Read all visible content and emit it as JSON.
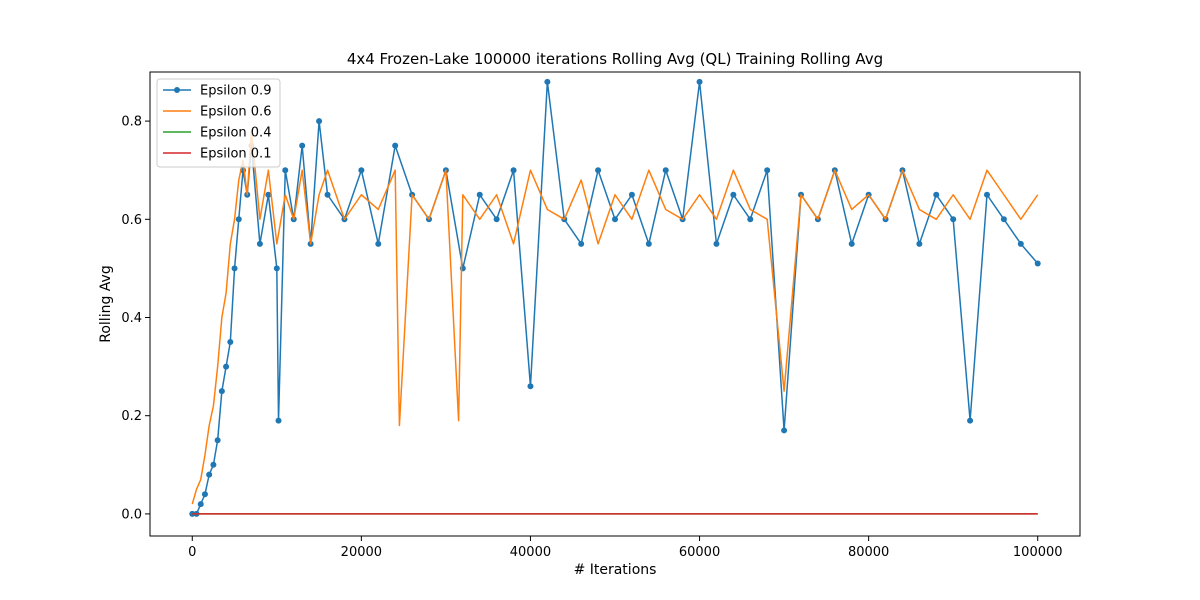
{
  "chart_data": {
    "type": "line",
    "title": "4x4 Frozen-Lake 100000 iterations  Rolling Avg (QL) Training Rolling Avg",
    "xlabel": "# Iterations",
    "ylabel": "Rolling Avg",
    "xlim": [
      -5000,
      105000
    ],
    "ylim": [
      -0.045,
      0.9
    ],
    "xticks": [
      0,
      20000,
      40000,
      60000,
      80000,
      100000
    ],
    "yticks": [
      0.0,
      0.2,
      0.4,
      0.6,
      0.8
    ],
    "xtick_labels": [
      "0",
      "20000",
      "40000",
      "60000",
      "80000",
      "100000"
    ],
    "ytick_labels": [
      "0.0",
      "0.2",
      "0.4",
      "0.6",
      "0.8"
    ],
    "grid": false,
    "legend_placement": "upper-left",
    "series": [
      {
        "name": "Epsilon 0.9",
        "color": "#1f77b4",
        "marker": "circle",
        "x": [
          0,
          500,
          1000,
          1500,
          2000,
          2500,
          3000,
          3500,
          4000,
          4500,
          5000,
          5500,
          6000,
          6500,
          7000,
          8000,
          9000,
          10000,
          10200,
          11000,
          12000,
          13000,
          14000,
          15000,
          16000,
          18000,
          20000,
          22000,
          24000,
          26000,
          28000,
          30000,
          32000,
          34000,
          36000,
          38000,
          40000,
          42000,
          44000,
          46000,
          48000,
          50000,
          52000,
          54000,
          56000,
          58000,
          60000,
          62000,
          64000,
          66000,
          68000,
          70000,
          72000,
          74000,
          76000,
          78000,
          80000,
          82000,
          84000,
          86000,
          88000,
          90000,
          92000,
          94000,
          96000,
          98000,
          100000
        ],
        "y": [
          0.0,
          0.0,
          0.02,
          0.04,
          0.08,
          0.1,
          0.15,
          0.25,
          0.3,
          0.35,
          0.5,
          0.6,
          0.7,
          0.65,
          0.75,
          0.55,
          0.65,
          0.5,
          0.19,
          0.7,
          0.6,
          0.75,
          0.55,
          0.8,
          0.65,
          0.6,
          0.7,
          0.55,
          0.75,
          0.65,
          0.6,
          0.7,
          0.5,
          0.65,
          0.6,
          0.7,
          0.26,
          0.88,
          0.6,
          0.55,
          0.7,
          0.6,
          0.65,
          0.55,
          0.7,
          0.6,
          0.88,
          0.55,
          0.65,
          0.6,
          0.7,
          0.17,
          0.65,
          0.6,
          0.7,
          0.55,
          0.65,
          0.6,
          0.7,
          0.55,
          0.65,
          0.6,
          0.19,
          0.65,
          0.6,
          0.55,
          0.51
        ]
      },
      {
        "name": "Epsilon 0.6",
        "color": "#ff7f0e",
        "marker": "none",
        "x": [
          0,
          500,
          1000,
          1500,
          2000,
          2500,
          3000,
          3500,
          4000,
          4500,
          5000,
          5500,
          6000,
          6500,
          7000,
          8000,
          9000,
          10000,
          11000,
          12000,
          13000,
          14000,
          15000,
          16000,
          18000,
          20000,
          22000,
          24000,
          24500,
          26000,
          28000,
          30000,
          31500,
          32000,
          34000,
          36000,
          38000,
          40000,
          42000,
          44000,
          46000,
          48000,
          50000,
          52000,
          54000,
          56000,
          58000,
          60000,
          62000,
          64000,
          66000,
          68000,
          70000,
          72000,
          74000,
          76000,
          78000,
          80000,
          82000,
          84000,
          86000,
          88000,
          90000,
          92000,
          94000,
          96000,
          98000,
          100000
        ],
        "y": [
          0.02,
          0.05,
          0.07,
          0.12,
          0.18,
          0.22,
          0.3,
          0.4,
          0.45,
          0.55,
          0.6,
          0.68,
          0.72,
          0.65,
          0.78,
          0.6,
          0.7,
          0.55,
          0.65,
          0.6,
          0.7,
          0.55,
          0.65,
          0.7,
          0.6,
          0.65,
          0.62,
          0.7,
          0.18,
          0.65,
          0.6,
          0.7,
          0.19,
          0.65,
          0.6,
          0.65,
          0.55,
          0.7,
          0.62,
          0.6,
          0.68,
          0.55,
          0.65,
          0.6,
          0.7,
          0.62,
          0.6,
          0.65,
          0.6,
          0.7,
          0.62,
          0.6,
          0.25,
          0.65,
          0.6,
          0.7,
          0.62,
          0.65,
          0.6,
          0.7,
          0.62,
          0.6,
          0.65,
          0.6,
          0.7,
          0.65,
          0.6,
          0.65
        ]
      },
      {
        "name": "Epsilon 0.4",
        "color": "#2ca02c",
        "marker": "none",
        "x": [
          0,
          100000
        ],
        "y": [
          0.0,
          0.0
        ]
      },
      {
        "name": "Epsilon 0.1",
        "color": "#d62728",
        "marker": "none",
        "x": [
          0,
          100000
        ],
        "y": [
          0.0,
          0.0
        ]
      }
    ]
  }
}
